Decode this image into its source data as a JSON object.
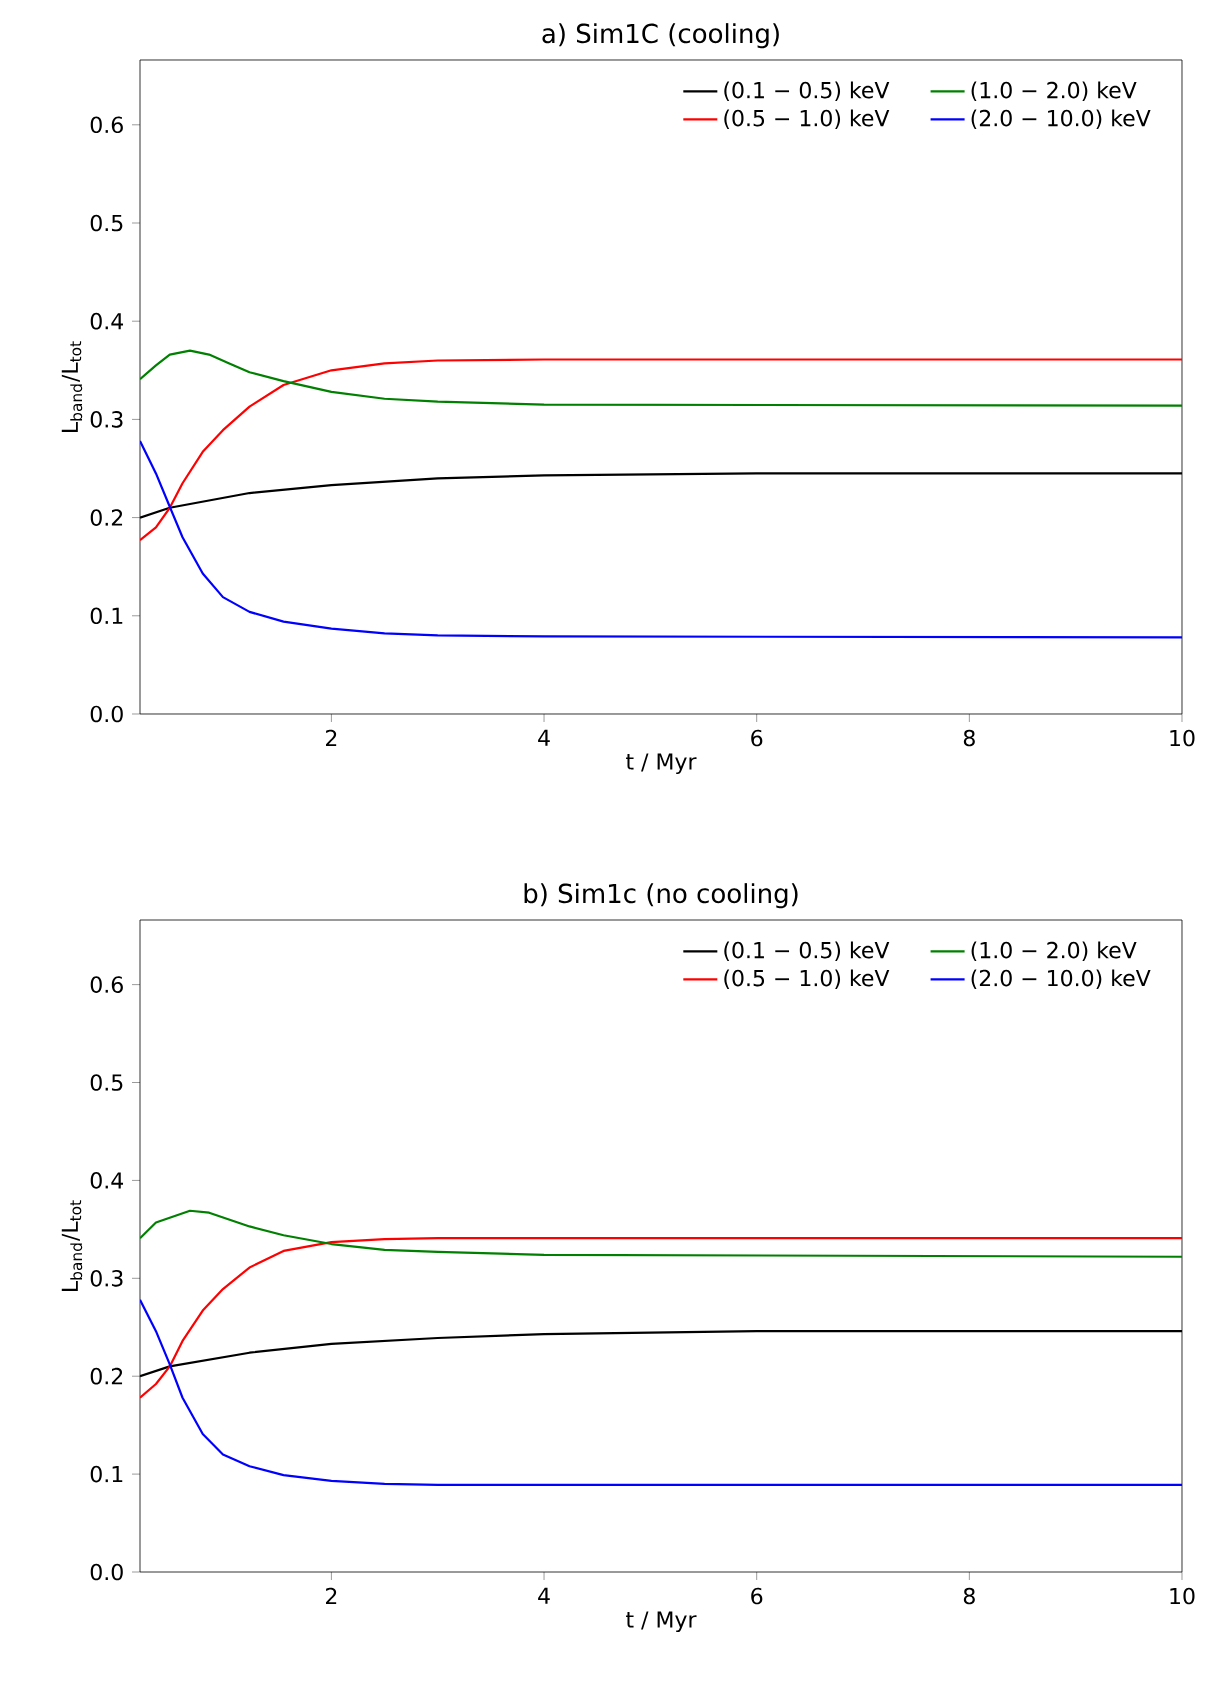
{
  "chart_data": [
    {
      "type": "line",
      "title": "a) Sim1C (cooling)",
      "xlabel": "t / Myr",
      "ylabel": "L$_{band}$/L$_{tot}$",
      "xlim": [
        0.2,
        10
      ],
      "ylim": [
        0,
        0.666
      ],
      "xticks": [
        2,
        4,
        6,
        8,
        10
      ],
      "yticks": [
        {
          "value": 0,
          "label": "0.0"
        },
        0.1,
        0.2,
        0.3,
        0.4,
        0.5,
        0.6
      ],
      "legend": "top right",
      "grid": false,
      "line_style": "solid",
      "marker": "none",
      "series": [
        {
          "name": "(0.1 − 0.5) keV",
          "color": "#000000",
          "x": [
            0.2,
            0.48,
            1.23,
            2.0,
            3.0,
            4.0,
            6.0,
            10
          ],
          "values": [
            0.2,
            0.21,
            0.225,
            0.233,
            0.24,
            0.243,
            0.245,
            0.245
          ]
        },
        {
          "name": "(0.5 − 1.0) keV",
          "color": "#ff0000",
          "x": [
            0.2,
            0.35,
            0.48,
            0.6,
            0.79,
            0.98,
            1.23,
            1.55,
            2.0,
            2.5,
            3.0,
            4.0,
            10
          ],
          "values": [
            0.177,
            0.19,
            0.21,
            0.235,
            0.267,
            0.289,
            0.313,
            0.335,
            0.35,
            0.357,
            0.36,
            0.361,
            0.361
          ]
        },
        {
          "name": "(1.0 − 2.0) keV",
          "color": "#008000",
          "x": [
            0.2,
            0.35,
            0.48,
            0.67,
            0.85,
            1.04,
            1.23,
            1.55,
            2.0,
            2.5,
            3.0,
            4.0,
            10
          ],
          "values": [
            0.341,
            0.355,
            0.366,
            0.37,
            0.366,
            0.357,
            0.348,
            0.339,
            0.328,
            0.321,
            0.318,
            0.315,
            0.314
          ]
        },
        {
          "name": "(2.0 − 10.0) keV",
          "color": "#0000ff",
          "x": [
            0.2,
            0.35,
            0.48,
            0.6,
            0.79,
            0.98,
            1.23,
            1.55,
            2.0,
            2.5,
            3.0,
            4.0,
            10
          ],
          "values": [
            0.278,
            0.245,
            0.211,
            0.18,
            0.143,
            0.119,
            0.104,
            0.094,
            0.087,
            0.082,
            0.08,
            0.079,
            0.078
          ]
        }
      ]
    },
    {
      "type": "line",
      "title": "b) Sim1c (no cooling)",
      "xlabel": "t / Myr",
      "ylabel": "L$_{band}$/L$_{tot}$",
      "xlim": [
        0.2,
        10
      ],
      "ylim": [
        0,
        0.666
      ],
      "xticks": [
        2,
        4,
        6,
        8,
        10
      ],
      "yticks": [
        {
          "value": 0,
          "label": "0.0"
        },
        0.1,
        0.2,
        0.3,
        0.4,
        0.5,
        0.6
      ],
      "legend": "top right",
      "grid": false,
      "line_style": "solid",
      "marker": "none",
      "series": [
        {
          "name": "(0.1 − 0.5) keV",
          "color": "#000000",
          "x": [
            0.2,
            0.48,
            1.23,
            2.0,
            3.0,
            4.0,
            6.0,
            10
          ],
          "values": [
            0.2,
            0.21,
            0.224,
            0.233,
            0.239,
            0.243,
            0.246,
            0.246
          ]
        },
        {
          "name": "(0.5 − 1.0) keV",
          "color": "#ff0000",
          "x": [
            0.2,
            0.35,
            0.48,
            0.6,
            0.79,
            0.98,
            1.23,
            1.55,
            2.0,
            2.5,
            3.0,
            10
          ],
          "values": [
            0.178,
            0.192,
            0.21,
            0.236,
            0.267,
            0.289,
            0.311,
            0.328,
            0.337,
            0.34,
            0.341,
            0.341
          ]
        },
        {
          "name": "(1.0 − 2.0) keV",
          "color": "#008000",
          "x": [
            0.2,
            0.35,
            0.67,
            0.85,
            1.23,
            1.55,
            2.0,
            2.5,
            3.0,
            4.0,
            10
          ],
          "values": [
            0.341,
            0.357,
            0.369,
            0.367,
            0.353,
            0.344,
            0.335,
            0.329,
            0.327,
            0.324,
            0.322
          ]
        },
        {
          "name": "(2.0 − 10.0) keV",
          "color": "#0000ff",
          "x": [
            0.2,
            0.35,
            0.48,
            0.6,
            0.79,
            0.98,
            1.23,
            1.55,
            2.0,
            2.5,
            3.0,
            10
          ],
          "values": [
            0.278,
            0.246,
            0.212,
            0.178,
            0.141,
            0.12,
            0.108,
            0.099,
            0.093,
            0.09,
            0.089,
            0.089
          ]
        }
      ]
    }
  ]
}
